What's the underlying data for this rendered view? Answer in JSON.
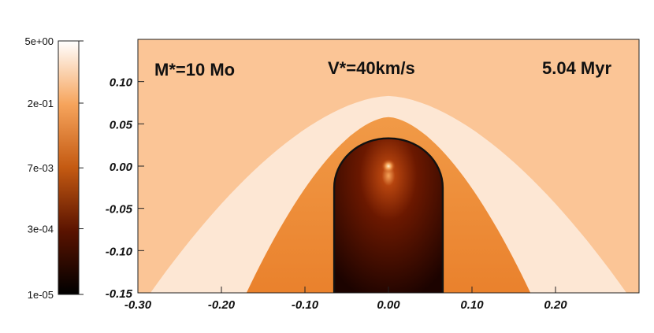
{
  "chart_data": {
    "type": "heatmap",
    "title": "",
    "annotations": {
      "mass": "M*=10 Mo",
      "velocity": "V*=40km/s",
      "time": "5.04 Myr"
    },
    "x_axis": {
      "range": [
        -0.3,
        0.3
      ],
      "ticks": [
        -0.3,
        -0.2,
        -0.1,
        0.0,
        0.1,
        0.2
      ],
      "tick_labels": [
        "-0.30",
        "-0.20",
        "-0.10",
        "0.00",
        "0.10",
        "0.20"
      ]
    },
    "y_axis": {
      "range": [
        -0.15,
        0.15
      ],
      "ticks": [
        0.1,
        0.05,
        0.0,
        -0.05,
        -0.1,
        -0.15
      ],
      "tick_labels": [
        "0.10",
        "0.05",
        "0.00",
        "-0.05",
        "-0.10",
        "-0.15"
      ]
    },
    "colorbar": {
      "scale": "log",
      "range": [
        1e-05,
        5.0
      ],
      "ticks": [
        5.0,
        0.2,
        0.007,
        0.0003,
        1e-05
      ],
      "tick_labels": [
        "5e+00",
        "2e-01",
        "7e-03",
        "3e-04",
        "1e-05"
      ],
      "colors": [
        "#000000",
        "#5a1300",
        "#c45a12",
        "#f6a45c",
        "#ffffff"
      ]
    },
    "regions": {
      "ambient_medium_color": "#fbc596",
      "outer_shell_color": "#fde7d4",
      "shocked_wind_color": "#ee8a34",
      "hot_bubble_color": "#6b1800",
      "contour_color": "#111111",
      "outer_shell_apex_y": 0.083,
      "outer_shell_base_halfwidth": 0.285,
      "shocked_layer_apex_y": 0.058,
      "shocked_layer_base_halfwidth": 0.17,
      "bubble_top_y": 0.033,
      "bubble_halfwidth": 0.065,
      "star_position": [
        0.0,
        0.0
      ]
    }
  }
}
